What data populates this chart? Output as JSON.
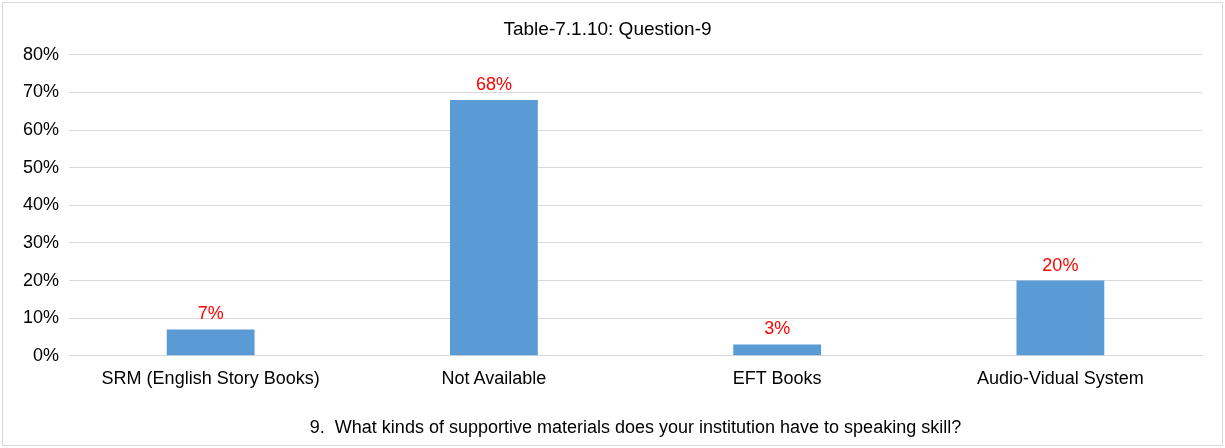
{
  "chart_data": {
    "type": "bar",
    "title": "Table-7.1.10: Question-9",
    "xlabel": "9.  What kinds of supportive materials does your institution have to speaking skill?",
    "categories": [
      "SRM (English Story Books)",
      "Not Available",
      "EFT Books",
      "Audio-Vidual System"
    ],
    "values": [
      7,
      68,
      3,
      20
    ],
    "color": "#5b9bd5",
    "value_labels": [
      "7%",
      "68%",
      "3%",
      "20%"
    ],
    "ylim": [
      0,
      80
    ],
    "yticks": [
      {
        "value": 0,
        "label": "0%"
      },
      {
        "value": 10,
        "label": "10%"
      },
      {
        "value": 20,
        "label": "20%"
      },
      {
        "value": 30,
        "label": "30%"
      },
      {
        "value": 40,
        "label": "40%"
      },
      {
        "value": 50,
        "label": "50%"
      },
      {
        "value": 60,
        "label": "60%"
      },
      {
        "value": 70,
        "label": "70%"
      },
      {
        "value": 80,
        "label": "80%"
      }
    ],
    "grid": "y",
    "legend": false
  }
}
